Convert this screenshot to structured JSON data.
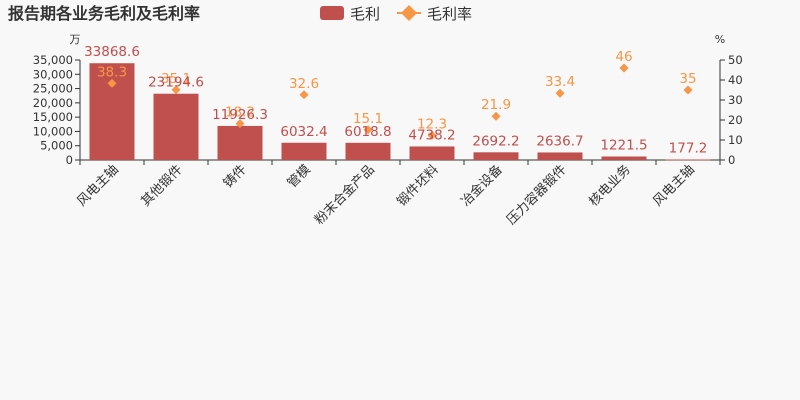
{
  "colors": {
    "bar": "#c0504d",
    "rate": "#f79646",
    "axis": "#333333"
  },
  "chart_data": {
    "type": "bar",
    "title": "报告期各业务毛利及毛利率",
    "legend": {
      "placement": "top-center",
      "entries": [
        "毛利",
        "毛利率"
      ]
    },
    "y_left": {
      "unit": "万",
      "ylim": [
        0,
        35000
      ],
      "ticks": [
        "0",
        "5,000",
        "10,000",
        "15,000",
        "20,000",
        "25,000",
        "30,000",
        "35,000"
      ]
    },
    "y_right": {
      "unit": "%",
      "ylim": [
        0,
        50
      ],
      "ticks": [
        "0",
        "10",
        "20",
        "30",
        "40",
        "50"
      ]
    },
    "grid": false,
    "categories": [
      "风电主轴",
      "其他锻件",
      "铸件",
      "管模",
      "粉末合金产品",
      "锻件坯料",
      "冶金设备",
      "压力容器锻件",
      "核电业务",
      "风电主轴"
    ],
    "series": [
      {
        "name": "毛利",
        "type": "bar",
        "axis": "left",
        "values": [
          33868.6,
          23194.6,
          11926.3,
          6032.4,
          6018.8,
          4738.2,
          2692.2,
          2636.7,
          1221.5,
          177.2
        ],
        "labels": [
          "33868.6",
          "23194.6",
          "11926.3",
          "6032.4",
          "6018.8",
          "4738.2",
          "2692.2",
          "2636.7",
          "1221.5",
          "177.2"
        ]
      },
      {
        "name": "毛利率",
        "type": "scatter",
        "axis": "right",
        "values": [
          38.3,
          35.1,
          18.2,
          32.6,
          15.1,
          12.3,
          21.9,
          33.4,
          46,
          35
        ],
        "labels": [
          "38.3",
          "35.1",
          "18.2",
          "32.6",
          "15.1",
          "12.3",
          "21.9",
          "33.4",
          "46",
          "35"
        ]
      }
    ]
  }
}
